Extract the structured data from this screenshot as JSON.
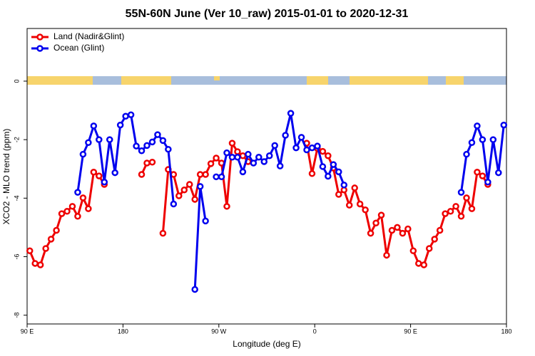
{
  "chart_data": {
    "type": "line",
    "title": "55N-60N June (Ver 10_raw)   2015-01-01 to 2020-12-31",
    "x_label": "Longitude (deg E)",
    "y_label": "XCO2 - MLO trend (ppm)",
    "x": [
      92.5,
      97.5,
      102.5,
      107.5,
      112.5,
      117.5,
      122.5,
      127.5,
      132.5,
      137.5,
      142.5,
      147.5,
      152.5,
      157.5,
      162.5,
      167.5,
      172.5,
      177.5,
      182.5,
      187.5,
      192.5,
      197.5,
      202.5,
      207.5,
      212.5,
      217.5,
      222.5,
      227.5,
      232.5,
      237.5,
      242.5,
      247.5,
      252.5,
      257.5,
      262.5,
      267.5,
      272.5,
      277.5,
      282.5,
      287.5,
      292.5,
      297.5,
      302.5,
      307.5,
      312.5,
      317.5,
      322.5,
      327.5,
      332.5,
      337.5,
      342.5,
      347.5,
      352.5,
      357.5,
      362.5,
      367.5,
      372.5,
      377.5,
      382.5,
      387.5,
      392.5,
      397.5,
      402.5,
      407.5,
      412.5,
      417.5,
      422.5,
      427.5,
      432.5,
      437.5,
      442.5,
      447.5,
      452.5,
      457.5,
      462.5,
      467.5,
      472.5,
      477.5,
      482.5,
      487.5,
      492.5,
      497.5,
      502.5,
      507.5,
      512.5,
      517.5,
      522.5,
      527.5,
      532.5,
      537.5
    ],
    "series": [
      {
        "name": "Land (Nadir&Glint)",
        "color": "#ee0000",
        "values": [
          -5.8,
          -6.23,
          -6.28,
          -5.72,
          -5.4,
          -5.1,
          -4.53,
          -4.45,
          -4.28,
          -4.62,
          -3.99,
          -4.36,
          -3.11,
          -3.24,
          -3.53,
          null,
          null,
          null,
          null,
          null,
          null,
          -3.19,
          -2.8,
          -2.77,
          null,
          -5.2,
          -3.02,
          -3.19,
          -3.92,
          -3.72,
          -3.53,
          -4.04,
          -3.19,
          -3.19,
          -2.82,
          -2.63,
          -2.8,
          -4.28,
          -2.12,
          -2.41,
          -2.55,
          -2.75,
          null,
          null,
          null,
          null,
          null,
          null,
          null,
          null,
          null,
          null,
          -2.12,
          -3.16,
          -2.3,
          -2.4,
          -2.55,
          -2.97,
          -3.87,
          -3.72,
          -4.24,
          -3.65,
          -4.2,
          -4.4,
          -5.2,
          -4.85,
          -4.58,
          -5.95,
          -5.1,
          -5.0,
          -5.2,
          -5.05,
          -5.8,
          -6.23,
          -6.28,
          -5.72,
          -5.4,
          -5.1,
          -4.53,
          -4.45,
          -4.28,
          -4.62,
          -3.99,
          -4.36,
          -3.11,
          -3.24,
          -3.53,
          null,
          null,
          null
        ]
      },
      {
        "name": "Ocean (Glint)",
        "color": "#0000ee",
        "values": [
          null,
          null,
          null,
          null,
          null,
          null,
          null,
          null,
          null,
          -3.8,
          -2.5,
          -2.1,
          -1.53,
          -2.0,
          -3.45,
          -2.0,
          -3.13,
          -1.5,
          -1.2,
          -1.15,
          -2.22,
          -2.38,
          -2.2,
          -2.08,
          -1.83,
          -2.03,
          -2.33,
          -4.2,
          null,
          null,
          null,
          -7.12,
          -3.6,
          -4.78,
          null,
          -3.27,
          -3.27,
          -2.45,
          -2.6,
          -2.6,
          -3.1,
          -2.5,
          -2.8,
          -2.6,
          -2.75,
          -2.55,
          -2.2,
          -2.9,
          -1.85,
          -1.1,
          -2.28,
          -1.92,
          -2.35,
          -2.28,
          -2.22,
          -2.92,
          -3.25,
          -2.85,
          -3.1,
          -3.55,
          null,
          null,
          null,
          null,
          null,
          null,
          null,
          null,
          null,
          null,
          null,
          null,
          null,
          null,
          null,
          null,
          null,
          null,
          null,
          null,
          null,
          -3.8,
          -2.5,
          -2.1,
          -1.53,
          -2.0,
          -3.45,
          -2.0,
          -3.13,
          -1.5
        ]
      }
    ],
    "xlim": [
      90,
      540
    ],
    "xticks": [
      {
        "value": 90,
        "label": "90 E"
      },
      {
        "value": 180,
        "label": "180"
      },
      {
        "value": 270,
        "label": "90 W"
      },
      {
        "value": 360,
        "label": "0"
      },
      {
        "value": 450,
        "label": "90 E"
      },
      {
        "value": 540,
        "label": "180"
      }
    ],
    "ylim": [
      -8.3,
      1.8
    ],
    "yticks": [
      0,
      -2,
      -4,
      -6,
      -8
    ],
    "legend": "top-left"
  }
}
